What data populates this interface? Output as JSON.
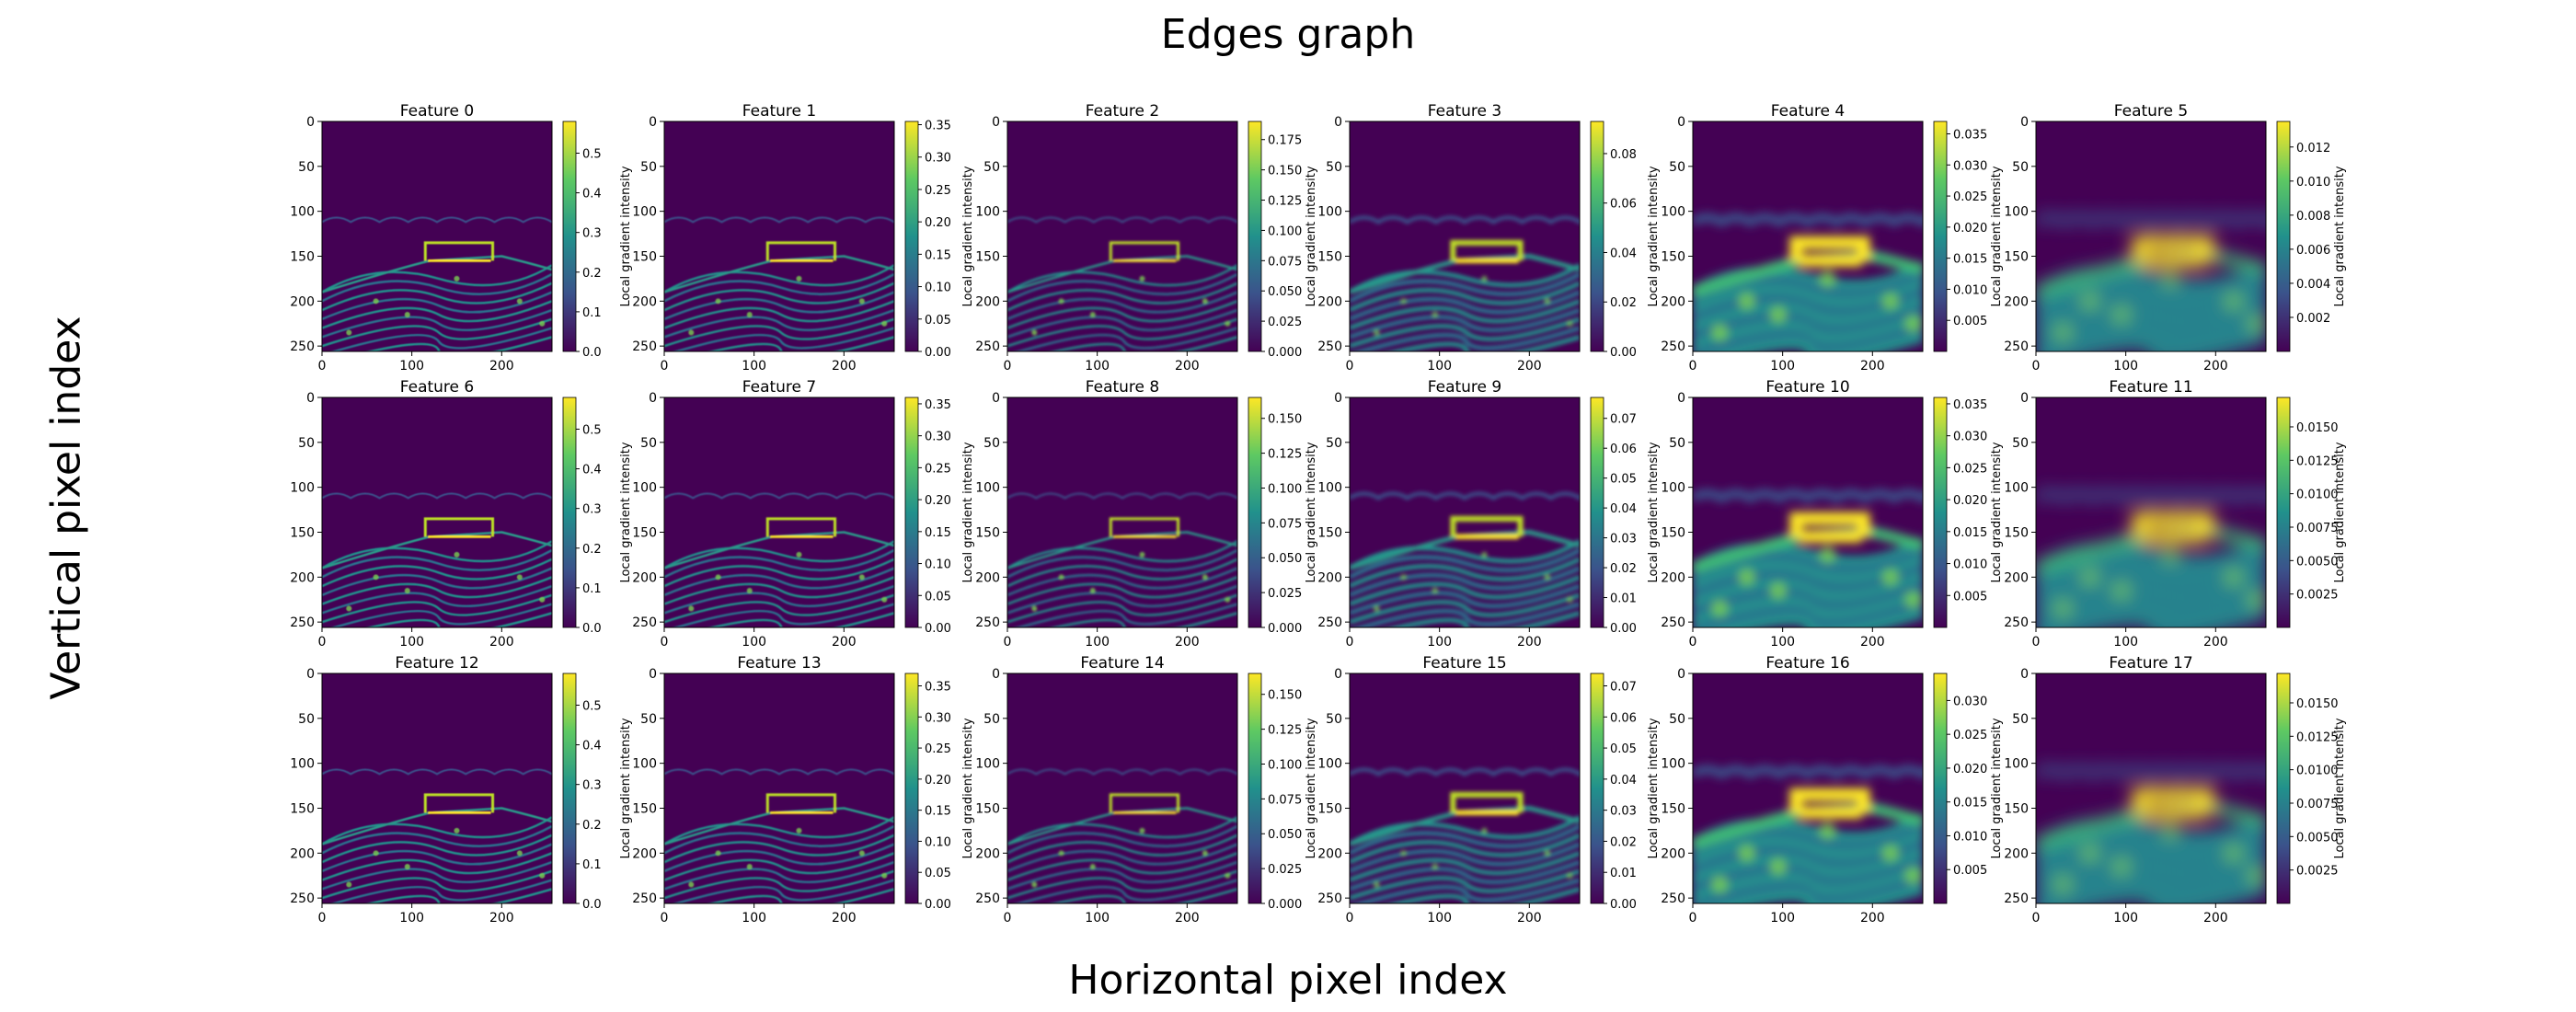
{
  "figure": {
    "title": "Edges graph",
    "xlabel": "Horizontal pixel index",
    "ylabel": "Vertical pixel index"
  },
  "chart_data": {
    "type": "heatmap",
    "colormap": "viridis",
    "rows": 3,
    "cols": 6,
    "x_ticks": [
      0,
      100,
      200
    ],
    "y_ticks": [
      0,
      50,
      100,
      150,
      200,
      250
    ],
    "xlim": [
      0,
      256
    ],
    "ylim": [
      256,
      0
    ],
    "colorbar_label": "Local gradient intensity",
    "panels": [
      {
        "title": "Feature 0",
        "vmin": 0,
        "vmax": 0.58,
        "cbar_ticks": [
          "0.0",
          "0.1",
          "0.2",
          "0.3",
          "0.4",
          "0.5"
        ]
      },
      {
        "title": "Feature 1",
        "vmin": 0,
        "vmax": 0.355,
        "cbar_ticks": [
          "0.00",
          "0.05",
          "0.10",
          "0.15",
          "0.20",
          "0.25",
          "0.30",
          "0.35"
        ]
      },
      {
        "title": "Feature 2",
        "vmin": 0,
        "vmax": 0.19,
        "cbar_ticks": [
          "0.000",
          "0.025",
          "0.050",
          "0.075",
          "0.100",
          "0.125",
          "0.150",
          "0.175"
        ]
      },
      {
        "title": "Feature 3",
        "vmin": 0,
        "vmax": 0.093,
        "cbar_ticks": [
          "0.00",
          "0.02",
          "0.04",
          "0.06",
          "0.08"
        ]
      },
      {
        "title": "Feature 4",
        "vmin": 0.0,
        "vmax": 0.037,
        "cbar_ticks": [
          "0.005",
          "0.010",
          "0.015",
          "0.020",
          "0.025",
          "0.030",
          "0.035"
        ]
      },
      {
        "title": "Feature 5",
        "vmin": 0.0,
        "vmax": 0.0135,
        "cbar_ticks": [
          "0.002",
          "0.004",
          "0.006",
          "0.008",
          "0.010",
          "0.012"
        ]
      },
      {
        "title": "Feature 6",
        "vmin": 0,
        "vmax": 0.58,
        "cbar_ticks": [
          "0.0",
          "0.1",
          "0.2",
          "0.3",
          "0.4",
          "0.5"
        ]
      },
      {
        "title": "Feature 7",
        "vmin": 0,
        "vmax": 0.36,
        "cbar_ticks": [
          "0.00",
          "0.05",
          "0.10",
          "0.15",
          "0.20",
          "0.25",
          "0.30",
          "0.35"
        ]
      },
      {
        "title": "Feature 8",
        "vmin": 0,
        "vmax": 0.165,
        "cbar_ticks": [
          "0.000",
          "0.025",
          "0.050",
          "0.075",
          "0.100",
          "0.125",
          "0.150"
        ]
      },
      {
        "title": "Feature 9",
        "vmin": 0,
        "vmax": 0.077,
        "cbar_ticks": [
          "0.00",
          "0.01",
          "0.02",
          "0.03",
          "0.04",
          "0.05",
          "0.06",
          "0.07"
        ]
      },
      {
        "title": "Feature 10",
        "vmin": 0.0,
        "vmax": 0.036,
        "cbar_ticks": [
          "0.005",
          "0.010",
          "0.015",
          "0.020",
          "0.025",
          "0.030",
          "0.035"
        ]
      },
      {
        "title": "Feature 11",
        "vmin": 0.0,
        "vmax": 0.0172,
        "cbar_ticks": [
          "0.0025",
          "0.0050",
          "0.0075",
          "0.0100",
          "0.0125",
          "0.0150"
        ]
      },
      {
        "title": "Feature 12",
        "vmin": 0,
        "vmax": 0.58,
        "cbar_ticks": [
          "0.0",
          "0.1",
          "0.2",
          "0.3",
          "0.4",
          "0.5"
        ]
      },
      {
        "title": "Feature 13",
        "vmin": 0,
        "vmax": 0.37,
        "cbar_ticks": [
          "0.00",
          "0.05",
          "0.10",
          "0.15",
          "0.20",
          "0.25",
          "0.30",
          "0.35"
        ]
      },
      {
        "title": "Feature 14",
        "vmin": 0,
        "vmax": 0.165,
        "cbar_ticks": [
          "0.000",
          "0.025",
          "0.050",
          "0.075",
          "0.100",
          "0.125",
          "0.150"
        ]
      },
      {
        "title": "Feature 15",
        "vmin": 0,
        "vmax": 0.074,
        "cbar_ticks": [
          "0.00",
          "0.01",
          "0.02",
          "0.03",
          "0.04",
          "0.05",
          "0.06",
          "0.07"
        ]
      },
      {
        "title": "Feature 16",
        "vmin": 0.0,
        "vmax": 0.034,
        "cbar_ticks": [
          "0.005",
          "0.010",
          "0.015",
          "0.020",
          "0.025",
          "0.030"
        ]
      },
      {
        "title": "Feature 17",
        "vmin": 0.0,
        "vmax": 0.0172,
        "cbar_ticks": [
          "0.0025",
          "0.0050",
          "0.0075",
          "0.0100",
          "0.0125",
          "0.0150"
        ]
      }
    ]
  },
  "colors": {
    "viridis_low": "#440154",
    "viridis_mid": "#21918c",
    "viridis_high": "#fde725"
  }
}
